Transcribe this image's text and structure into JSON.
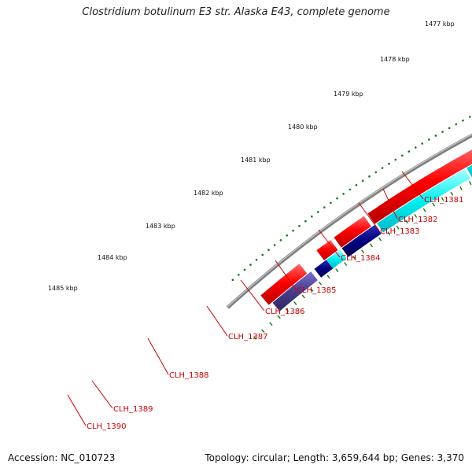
{
  "title": "Clostridium botulinum E3 str. Alaska E43, complete genome",
  "footer": {
    "accession": "Accession: NC_010723",
    "summary": "Topology: circular; Length: 3,659,644 bp; Genes: 3,370"
  },
  "colors": {
    "backbone": "#808080",
    "cds_red": "#ff0000",
    "cds_cyan": "#00ffff",
    "cds_navy": "#000080",
    "cds_steel": "#4682b4",
    "cds_slate": "#483d8b",
    "tick": "#0a7a1a",
    "label": "#cc0000"
  },
  "kbp_labels": [
    "1477 kbp",
    "1478 kbp",
    "1479 kbp",
    "1480 kbp",
    "1481 kbp",
    "1482 kbp",
    "1483 kbp",
    "1484 kbp",
    "1485 kbp"
  ],
  "genes": [
    "CLH_1381",
    "CLH_1382",
    "CLH_1383",
    "CLH_1384",
    "CLH_1385",
    "CLH_1386",
    "CLH_1387",
    "CLH_1388",
    "CLH_1389",
    "CLH_1390"
  ]
}
